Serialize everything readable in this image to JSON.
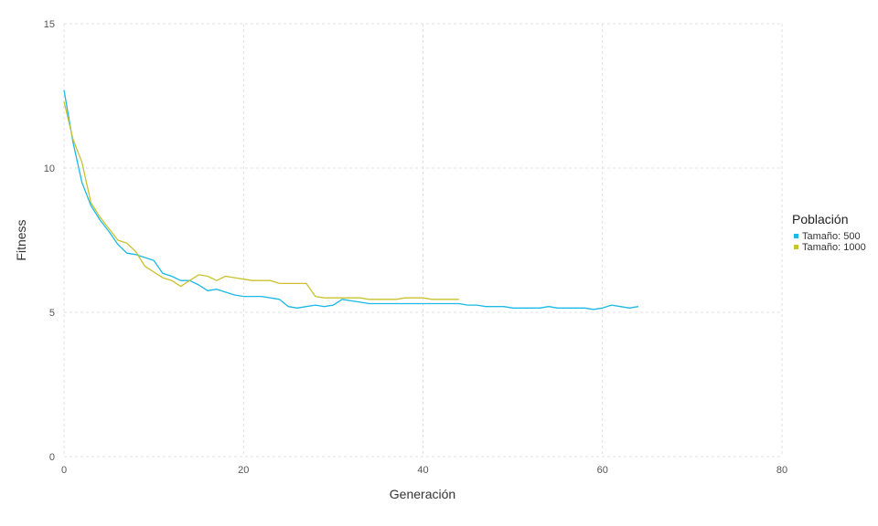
{
  "chart_data": {
    "type": "line",
    "xlabel": "Generación",
    "ylabel": "Fitness",
    "xlim": [
      0,
      80
    ],
    "ylim": [
      0,
      15
    ],
    "xticks": [
      0,
      20,
      40,
      60,
      80
    ],
    "yticks": [
      0,
      5,
      10,
      15
    ],
    "grid": true,
    "legend": {
      "title": "Población",
      "placement": "right"
    },
    "series": [
      {
        "name": "Tamaño: 500",
        "color": "#1cb8e6",
        "x": [
          0,
          1,
          2,
          3,
          4,
          5,
          6,
          7,
          8,
          9,
          10,
          11,
          12,
          13,
          14,
          15,
          16,
          17,
          18,
          19,
          20,
          21,
          22,
          23,
          24,
          25,
          26,
          27,
          28,
          29,
          30,
          31,
          32,
          33,
          34,
          35,
          36,
          37,
          38,
          39,
          40,
          41,
          42,
          43,
          44,
          45,
          46,
          47,
          48,
          49,
          50,
          51,
          52,
          53,
          54,
          55,
          56,
          57,
          58,
          59,
          60,
          61,
          62,
          63,
          64
        ],
        "y": [
          12.7,
          10.9,
          9.5,
          8.7,
          8.2,
          7.8,
          7.35,
          7.05,
          7.0,
          6.9,
          6.8,
          6.35,
          6.25,
          6.1,
          6.1,
          5.95,
          5.75,
          5.8,
          5.7,
          5.6,
          5.55,
          5.55,
          5.55,
          5.5,
          5.45,
          5.2,
          5.15,
          5.2,
          5.25,
          5.2,
          5.25,
          5.45,
          5.4,
          5.35,
          5.3,
          5.3,
          5.3,
          5.3,
          5.3,
          5.3,
          5.3,
          5.3,
          5.3,
          5.3,
          5.3,
          5.25,
          5.25,
          5.2,
          5.2,
          5.2,
          5.15,
          5.15,
          5.15,
          5.15,
          5.2,
          5.15,
          5.15,
          5.15,
          5.15,
          5.1,
          5.15,
          5.25,
          5.2,
          5.15,
          5.2
        ]
      },
      {
        "name": "Tamaño: 1000",
        "color": "#c9c22e",
        "x": [
          0,
          1,
          2,
          3,
          4,
          5,
          6,
          7,
          8,
          9,
          10,
          11,
          12,
          13,
          14,
          15,
          16,
          17,
          18,
          19,
          20,
          21,
          22,
          23,
          24,
          25,
          26,
          27,
          28,
          29,
          30,
          31,
          32,
          33,
          34,
          35,
          36,
          37,
          38,
          39,
          40,
          41,
          42,
          43,
          44
        ],
        "y": [
          12.3,
          11.0,
          10.2,
          8.8,
          8.3,
          7.9,
          7.5,
          7.4,
          7.1,
          6.6,
          6.4,
          6.2,
          6.1,
          5.9,
          6.1,
          6.3,
          6.25,
          6.1,
          6.25,
          6.2,
          6.15,
          6.1,
          6.1,
          6.1,
          6.0,
          6.0,
          6.0,
          6.0,
          5.55,
          5.5,
          5.5,
          5.5,
          5.5,
          5.5,
          5.45,
          5.45,
          5.45,
          5.45,
          5.5,
          5.5,
          5.5,
          5.45,
          5.45,
          5.45,
          5.45
        ]
      }
    ]
  }
}
